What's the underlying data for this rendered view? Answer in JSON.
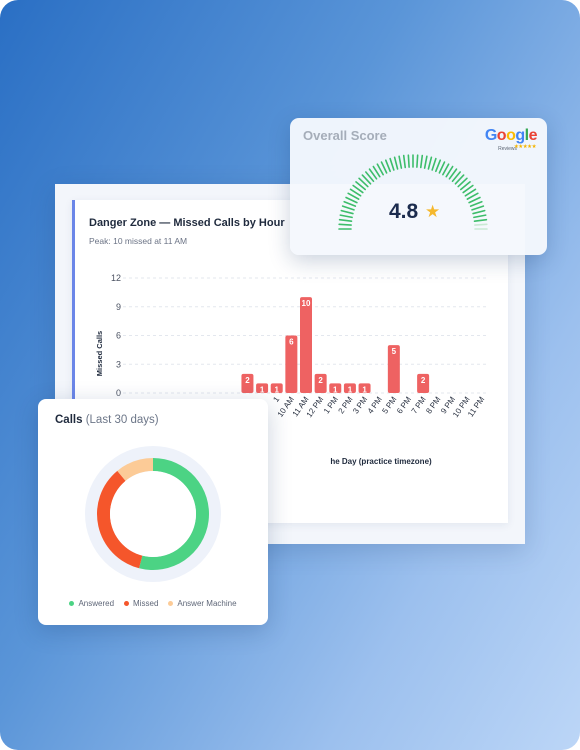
{
  "chart_data": [
    {
      "type": "bar",
      "title": "Danger Zone — Missed Calls by Hour",
      "subtitle": "Peak: 10 missed at 11 AM",
      "ylabel": "Missed Calls",
      "xlabel": "he Day (practice timezone)",
      "ylim": [
        0,
        12
      ],
      "yticks": [
        "0",
        "3",
        "6",
        "9",
        "12"
      ],
      "categories": [
        "",
        "",
        "",
        "",
        "",
        "",
        "",
        "",
        "",
        "",
        "1",
        "10 AM",
        "11 AM",
        "12 PM",
        "1 PM",
        "2 PM",
        "3 PM",
        "4 PM",
        "5 PM",
        "6 PM",
        "7 PM",
        "8 PM",
        "9 PM",
        "10 PM",
        "11 PM"
      ],
      "values": [
        0,
        0,
        0,
        0,
        0,
        0,
        0,
        0,
        2,
        1,
        1,
        6,
        10,
        2,
        1,
        1,
        1,
        0,
        5,
        0,
        2,
        0,
        0,
        0,
        0
      ],
      "bar_color": "#ee6262",
      "grid": true
    },
    {
      "type": "pie",
      "variant": "donut",
      "categories": [
        "Answered",
        "Missed",
        "Answer Machine"
      ],
      "values": [
        54,
        35,
        11
      ],
      "colors": [
        "#4cd384",
        "#f5562b",
        "#fccb97"
      ]
    }
  ],
  "score": {
    "title": "Overall Score",
    "value": "4.8",
    "star": "★",
    "gauge_fraction": 0.96,
    "gauge_color": "#3dbd6a",
    "badge": {
      "letters": [
        "G",
        "o",
        "o",
        "g",
        "l",
        "e"
      ],
      "letter_colors": [
        "#4285f4",
        "#ea4335",
        "#fbbc05",
        "#4285f4",
        "#34a853",
        "#ea4335"
      ],
      "sub": "Reviews",
      "stars": "★★★★★"
    }
  },
  "calls": {
    "title": "Calls",
    "period": "(Last 30 days)",
    "legend": [
      {
        "label": "Answered",
        "color": "#4cd384"
      },
      {
        "label": "Missed",
        "color": "#f5562b"
      },
      {
        "label": "Answer Machine",
        "color": "#fccb97"
      }
    ]
  }
}
